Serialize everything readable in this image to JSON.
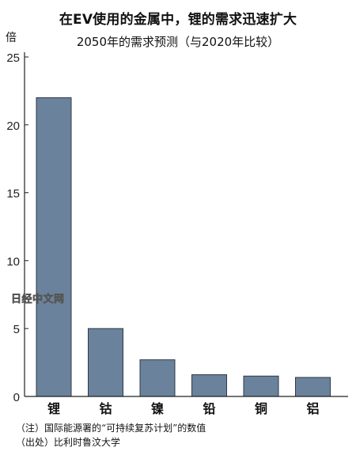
{
  "title": "在EV使用的金属中，锂的需求迅速扩大",
  "subtitle": "2050年的需求预测（与2020年比较）",
  "watermark_text": "日经中文网",
  "notes": [
    "（注）国际能源署的“可持续复苏计划”的数值",
    "（出处）比利时鲁汶大学"
  ],
  "colors": {
    "bar_fill": "#6a829c",
    "bar_stroke": "#2e3a46",
    "axis": "#222222"
  },
  "chart_data": {
    "type": "bar",
    "ylabel": "倍",
    "ylim": [
      0,
      25
    ],
    "yticks": [
      0,
      5,
      10,
      15,
      20,
      25
    ],
    "categories": [
      "锂",
      "钴",
      "镍",
      "铅",
      "铜",
      "铝"
    ],
    "values": [
      22.0,
      5.0,
      2.7,
      1.6,
      1.5,
      1.4
    ],
    "grid": false,
    "legend": "none"
  }
}
